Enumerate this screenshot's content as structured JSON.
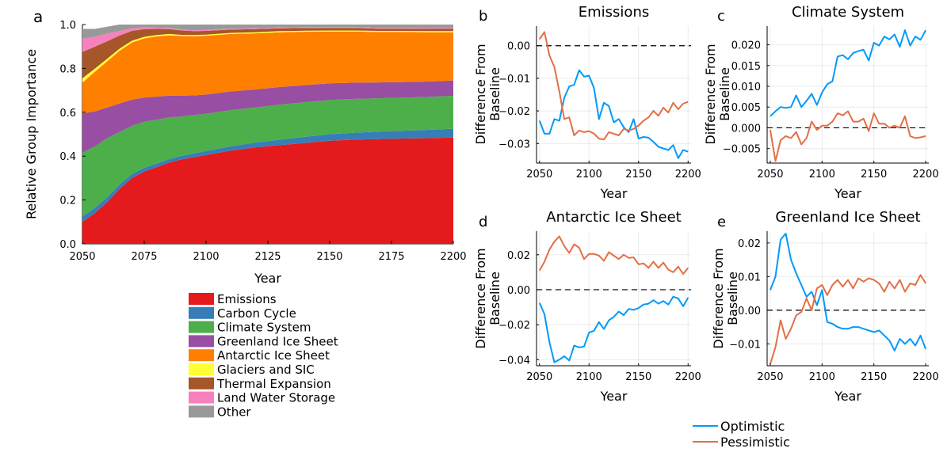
{
  "figure": {
    "panel_letters": [
      "a",
      "b",
      "c",
      "d",
      "e"
    ],
    "line_legend": [
      {
        "name": "Optimistic",
        "color": "#009AFA"
      },
      {
        "name": "Pessimistic",
        "color": "#E26F46"
      }
    ]
  },
  "chart_data": [
    {
      "panel": "a",
      "type": "area",
      "stacked": true,
      "xlabel": "Year",
      "ylabel": "Relative Group Importance",
      "xlim": [
        2050,
        2200
      ],
      "ylim": [
        0,
        1
      ],
      "xticks": [
        "2050",
        "2075",
        "2100",
        "2125",
        "2150",
        "2175",
        "2200"
      ],
      "yticks": [
        "0.0",
        "0.2",
        "0.4",
        "0.6",
        "0.8",
        "1.0"
      ],
      "legend_position": "below",
      "x": [
        2050,
        2055,
        2060,
        2065,
        2070,
        2075,
        2080,
        2085,
        2090,
        2095,
        2100,
        2110,
        2120,
        2130,
        2140,
        2150,
        2160,
        2170,
        2180,
        2190,
        2200
      ],
      "series": [
        {
          "name": "Emissions",
          "color": "#E41A1C",
          "values": [
            0.1,
            0.14,
            0.19,
            0.25,
            0.3,
            0.33,
            0.35,
            0.37,
            0.385,
            0.395,
            0.405,
            0.425,
            0.44,
            0.45,
            0.46,
            0.47,
            0.475,
            0.478,
            0.48,
            0.482,
            0.485
          ]
        },
        {
          "name": "Carbon Cycle",
          "color": "#377EB8",
          "values": [
            0.025,
            0.024,
            0.022,
            0.02,
            0.018,
            0.017,
            0.016,
            0.016,
            0.016,
            0.017,
            0.018,
            0.02,
            0.022,
            0.025,
            0.028,
            0.03,
            0.032,
            0.034,
            0.036,
            0.038,
            0.04
          ]
        },
        {
          "name": "Climate System",
          "color": "#4DAF4A",
          "values": [
            0.29,
            0.28,
            0.27,
            0.24,
            0.22,
            0.21,
            0.2,
            0.19,
            0.18,
            0.175,
            0.17,
            0.165,
            0.16,
            0.16,
            0.158,
            0.156,
            0.154,
            0.152,
            0.151,
            0.15,
            0.15
          ]
        },
        {
          "name": "Greenland Ice Sheet",
          "color": "#984EA3",
          "values": [
            0.18,
            0.16,
            0.14,
            0.13,
            0.12,
            0.11,
            0.105,
            0.1,
            0.095,
            0.09,
            0.088,
            0.085,
            0.082,
            0.08,
            0.078,
            0.076,
            0.074,
            0.072,
            0.071,
            0.07,
            0.07
          ]
        },
        {
          "name": "Antarctic Ice Sheet",
          "color": "#FF7F00",
          "values": [
            0.14,
            0.18,
            0.21,
            0.24,
            0.26,
            0.27,
            0.275,
            0.275,
            0.272,
            0.27,
            0.268,
            0.262,
            0.256,
            0.25,
            0.243,
            0.236,
            0.233,
            0.23,
            0.228,
            0.225,
            0.22
          ]
        },
        {
          "name": "Glaciers and SIC",
          "color": "#FFFF33",
          "values": [
            0.02,
            0.015,
            0.012,
            0.01,
            0.008,
            0.007,
            0.006,
            0.006,
            0.005,
            0.005,
            0.005,
            0.005,
            0.005,
            0.005,
            0.005,
            0.005,
            0.005,
            0.005,
            0.005,
            0.005,
            0.005
          ]
        },
        {
          "name": "Thermal Expansion",
          "color": "#A65628",
          "values": [
            0.12,
            0.1,
            0.08,
            0.06,
            0.045,
            0.035,
            0.028,
            0.022,
            0.02,
            0.018,
            0.017,
            0.015,
            0.014,
            0.013,
            0.012,
            0.011,
            0.011,
            0.01,
            0.01,
            0.01,
            0.01
          ]
        },
        {
          "name": "Land Water Storage",
          "color": "#F781BF",
          "values": [
            0.06,
            0.045,
            0.035,
            0.02,
            0.012,
            0.008,
            0.006,
            0.005,
            0.004,
            0.004,
            0.004,
            0.004,
            0.004,
            0.004,
            0.004,
            0.004,
            0.004,
            0.004,
            0.004,
            0.004,
            0.004
          ]
        },
        {
          "name": "Other",
          "color": "#999999",
          "values": [
            0.045,
            0.036,
            0.031,
            0.03,
            0.017,
            0.013,
            0.014,
            0.016,
            0.023,
            0.026,
            0.025,
            0.021,
            0.017,
            0.013,
            0.012,
            0.012,
            0.012,
            0.015,
            0.015,
            0.016,
            0.016
          ]
        }
      ]
    },
    {
      "panel": "b",
      "type": "line",
      "title": "Emissions",
      "xlabel": "Year",
      "ylabel": "Difference From Baseline",
      "xlim": [
        2047,
        2203
      ],
      "ylim": [
        -0.036,
        0.006
      ],
      "xticks": [
        "2050",
        "2100",
        "2150",
        "2200"
      ],
      "yticks": [
        "-0.03",
        "-0.02",
        "-0.01",
        "0.00"
      ],
      "ytick_values": [
        -0.03,
        -0.02,
        -0.01,
        0.0
      ],
      "baseline": 0,
      "x": [
        2050,
        2055,
        2060,
        2065,
        2070,
        2075,
        2080,
        2085,
        2090,
        2095,
        2100,
        2105,
        2110,
        2115,
        2120,
        2125,
        2130,
        2135,
        2140,
        2145,
        2150,
        2155,
        2160,
        2165,
        2170,
        2175,
        2180,
        2185,
        2190,
        2195,
        2200
      ],
      "series": [
        {
          "name": "Optimistic",
          "color": "#009AFA",
          "values": [
            -0.023,
            -0.027,
            -0.027,
            -0.0225,
            -0.023,
            -0.016,
            -0.0125,
            -0.012,
            -0.0075,
            -0.0095,
            -0.0092,
            -0.013,
            -0.0225,
            -0.0175,
            -0.0185,
            -0.0235,
            -0.0225,
            -0.025,
            -0.0265,
            -0.0225,
            -0.0285,
            -0.028,
            -0.0282,
            -0.0295,
            -0.031,
            -0.0315,
            -0.032,
            -0.0305,
            -0.0345,
            -0.032,
            -0.0325
          ]
        },
        {
          "name": "Pessimistic",
          "color": "#E26F46",
          "values": [
            0.002,
            0.0042,
            -0.003,
            -0.0065,
            -0.014,
            -0.0225,
            -0.022,
            -0.0275,
            -0.026,
            -0.0265,
            -0.0262,
            -0.027,
            -0.0285,
            -0.0288,
            -0.0265,
            -0.027,
            -0.0275,
            -0.0255,
            -0.026,
            -0.0255,
            -0.0245,
            -0.023,
            -0.022,
            -0.02,
            -0.0215,
            -0.019,
            -0.0205,
            -0.0175,
            -0.0195,
            -0.0178,
            -0.0172
          ]
        }
      ]
    },
    {
      "panel": "c",
      "type": "line",
      "title": "Climate System",
      "xlabel": "Year",
      "ylabel": "Difference From Baseline",
      "xlim": [
        2047,
        2203
      ],
      "ylim": [
        -0.0085,
        0.0245
      ],
      "xticks": [
        "2050",
        "2100",
        "2150",
        "2200"
      ],
      "yticks": [
        "-0.005",
        "0.000",
        "0.005",
        "0.010",
        "0.015",
        "0.020"
      ],
      "ytick_values": [
        -0.005,
        0.0,
        0.005,
        0.01,
        0.015,
        0.02
      ],
      "baseline": 0,
      "x": [
        2050,
        2055,
        2060,
        2065,
        2070,
        2075,
        2080,
        2085,
        2090,
        2095,
        2100,
        2105,
        2110,
        2115,
        2120,
        2125,
        2130,
        2135,
        2140,
        2145,
        2150,
        2155,
        2160,
        2165,
        2170,
        2175,
        2180,
        2185,
        2190,
        2195,
        2200
      ],
      "series": [
        {
          "name": "Optimistic",
          "color": "#009AFA",
          "values": [
            0.0028,
            0.004,
            0.005,
            0.0048,
            0.005,
            0.0078,
            0.005,
            0.0065,
            0.0082,
            0.0055,
            0.0085,
            0.0105,
            0.0112,
            0.0172,
            0.0175,
            0.0165,
            0.018,
            0.0185,
            0.0188,
            0.0162,
            0.0205,
            0.0198,
            0.022,
            0.0213,
            0.0225,
            0.0195,
            0.0235,
            0.0198,
            0.022,
            0.0212,
            0.0235
          ]
        },
        {
          "name": "Pessimistic",
          "color": "#E26F46",
          "values": [
            -0.0005,
            -0.008,
            -0.003,
            -0.002,
            -0.0025,
            -0.001,
            -0.004,
            -0.0025,
            0.0015,
            -0.0005,
            0.0005,
            0.0005,
            0.0015,
            0.0035,
            0.003,
            0.004,
            0.0015,
            0.0015,
            0.0022,
            -0.0008,
            0.0035,
            0.001,
            0.001,
            0.0,
            0.0005,
            0.0,
            0.0028,
            -0.002,
            -0.0025,
            -0.0023,
            -0.002
          ]
        }
      ]
    },
    {
      "panel": "d",
      "type": "line",
      "title": "Antarctic Ice Sheet",
      "xlabel": "Year",
      "ylabel": "Difference From Baseline",
      "xlim": [
        2047,
        2203
      ],
      "ylim": [
        -0.0435,
        0.0335
      ],
      "xticks": [
        "2050",
        "2100",
        "2150",
        "2200"
      ],
      "yticks": [
        "-0.04",
        "-0.02",
        "0.00",
        "0.02"
      ],
      "ytick_values": [
        -0.04,
        -0.02,
        0.0,
        0.02
      ],
      "baseline": 0,
      "x": [
        2050,
        2055,
        2060,
        2065,
        2070,
        2075,
        2080,
        2085,
        2090,
        2095,
        2100,
        2105,
        2110,
        2115,
        2120,
        2125,
        2130,
        2135,
        2140,
        2145,
        2150,
        2155,
        2160,
        2165,
        2170,
        2175,
        2180,
        2185,
        2190,
        2195,
        2200
      ],
      "series": [
        {
          "name": "Optimistic",
          "color": "#009AFA",
          "values": [
            -0.0075,
            -0.014,
            -0.03,
            -0.0415,
            -0.04,
            -0.038,
            -0.0405,
            -0.032,
            -0.033,
            -0.0325,
            -0.0245,
            -0.0235,
            -0.0185,
            -0.0225,
            -0.0175,
            -0.0155,
            -0.0125,
            -0.0145,
            -0.011,
            -0.0115,
            -0.0105,
            -0.0085,
            -0.008,
            -0.006,
            -0.008,
            -0.0065,
            -0.0085,
            -0.004,
            -0.005,
            -0.0095,
            -0.0045
          ]
        },
        {
          "name": "Pessimistic",
          "color": "#E26F46",
          "values": [
            0.011,
            0.016,
            0.023,
            0.0275,
            0.0305,
            0.025,
            0.021,
            0.026,
            0.024,
            0.0175,
            0.0205,
            0.0205,
            0.0195,
            0.0165,
            0.0215,
            0.0195,
            0.0175,
            0.02,
            0.0182,
            0.0185,
            0.0145,
            0.015,
            0.0125,
            0.016,
            0.0125,
            0.0155,
            0.0115,
            0.01,
            0.0132,
            0.009,
            0.0125
          ]
        }
      ]
    },
    {
      "panel": "e",
      "type": "line",
      "title": "Greenland Ice Sheet",
      "xlabel": "Year",
      "ylabel": "Difference From Baseline",
      "xlim": [
        2047,
        2203
      ],
      "ylim": [
        -0.0165,
        0.0235
      ],
      "xticks": [
        "2050",
        "2100",
        "2150",
        "2200"
      ],
      "yticks": [
        "-0.01",
        "0.00",
        "0.01",
        "0.02"
      ],
      "ytick_values": [
        -0.01,
        0.0,
        0.01,
        0.02
      ],
      "baseline": 0,
      "x": [
        2050,
        2055,
        2060,
        2065,
        2070,
        2075,
        2080,
        2085,
        2090,
        2095,
        2100,
        2105,
        2110,
        2115,
        2120,
        2125,
        2130,
        2135,
        2140,
        2145,
        2150,
        2155,
        2160,
        2165,
        2170,
        2175,
        2180,
        2185,
        2190,
        2195,
        2200
      ],
      "series": [
        {
          "name": "Optimistic",
          "color": "#009AFA",
          "values": [
            0.006,
            0.01,
            0.021,
            0.0228,
            0.015,
            0.011,
            0.0075,
            0.004,
            0.0055,
            0.0015,
            0.006,
            -0.0035,
            -0.004,
            -0.005,
            -0.0055,
            -0.0055,
            -0.005,
            -0.005,
            -0.0055,
            -0.006,
            -0.0065,
            -0.006,
            -0.0075,
            -0.009,
            -0.012,
            -0.0085,
            -0.01,
            -0.0085,
            -0.0105,
            -0.0075,
            -0.0115
          ]
        },
        {
          "name": "Pessimistic",
          "color": "#E26F46",
          "values": [
            -0.016,
            -0.011,
            -0.003,
            -0.0085,
            -0.0055,
            -0.0015,
            -0.0005,
            0.0035,
            0.0,
            0.0065,
            0.0075,
            0.0045,
            0.0075,
            0.009,
            0.007,
            0.009,
            0.0065,
            0.0095,
            0.0085,
            0.0095,
            0.009,
            0.008,
            0.0055,
            0.0085,
            0.0065,
            0.009,
            0.0055,
            0.008,
            0.0075,
            0.0105,
            0.008
          ]
        }
      ]
    }
  ]
}
